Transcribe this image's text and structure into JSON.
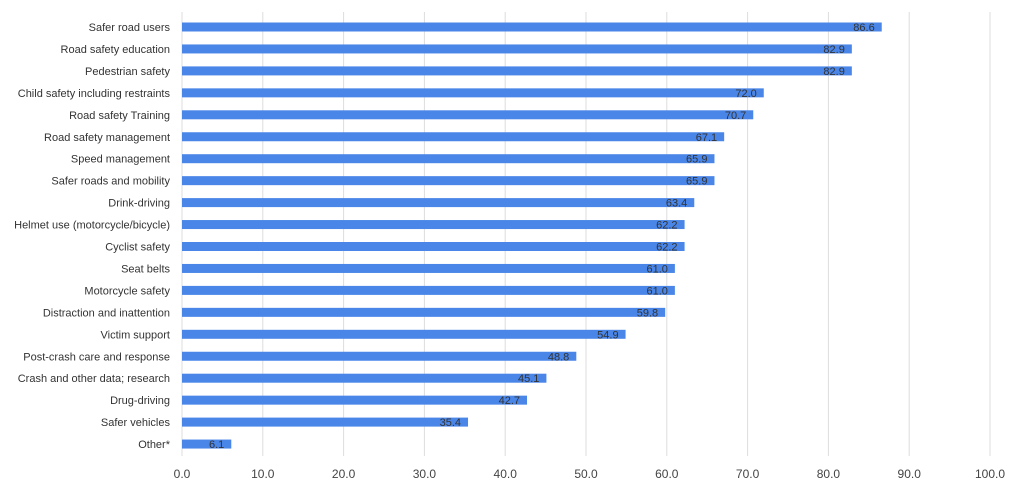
{
  "chart_data": {
    "type": "bar",
    "orientation": "horizontal",
    "title": "",
    "xlabel": "",
    "ylabel": "",
    "categories": [
      "Safer road users",
      "Road safety education",
      "Pedestrian safety",
      "Child safety including restraints",
      "Road safety Training",
      "Road safety management",
      "Speed management",
      "Safer roads and mobility",
      "Drink-driving",
      "Helmet use (motorcycle/bicycle)",
      "Cyclist safety",
      "Seat belts",
      "Motorcycle safety",
      "Distraction and inattention",
      "Victim support",
      "Post-crash care and response",
      "Crash and other data; research",
      "Drug-driving",
      "Safer vehicles",
      "Other*"
    ],
    "values": [
      86.6,
      82.9,
      82.9,
      72.0,
      70.7,
      67.1,
      65.9,
      65.9,
      63.4,
      62.2,
      62.2,
      61.0,
      61.0,
      59.8,
      54.9,
      48.8,
      45.1,
      42.7,
      35.4,
      6.1
    ],
    "value_labels": [
      "86.6",
      "82.9",
      "82.9",
      "72.0",
      "70.7",
      "67.1",
      "65.9",
      "65.9",
      "63.4",
      "62.2",
      "62.2",
      "61.0",
      "61.0",
      "59.8",
      "54.9",
      "48.8",
      "45.1",
      "42.7",
      "35.4",
      "6.1"
    ],
    "xlim": [
      0,
      100
    ],
    "x_ticks": [
      0,
      10,
      20,
      30,
      40,
      50,
      60,
      70,
      80,
      90,
      100
    ],
    "x_tick_labels": [
      "0.0",
      "10.0",
      "20.0",
      "30.0",
      "40.0",
      "50.0",
      "60.0",
      "70.0",
      "80.0",
      "90.0",
      "100.0"
    ],
    "grid": true,
    "legend": "none",
    "bar_color": "#4a86e8",
    "grid_color": "#dddddd",
    "text_color": "#333333"
  }
}
